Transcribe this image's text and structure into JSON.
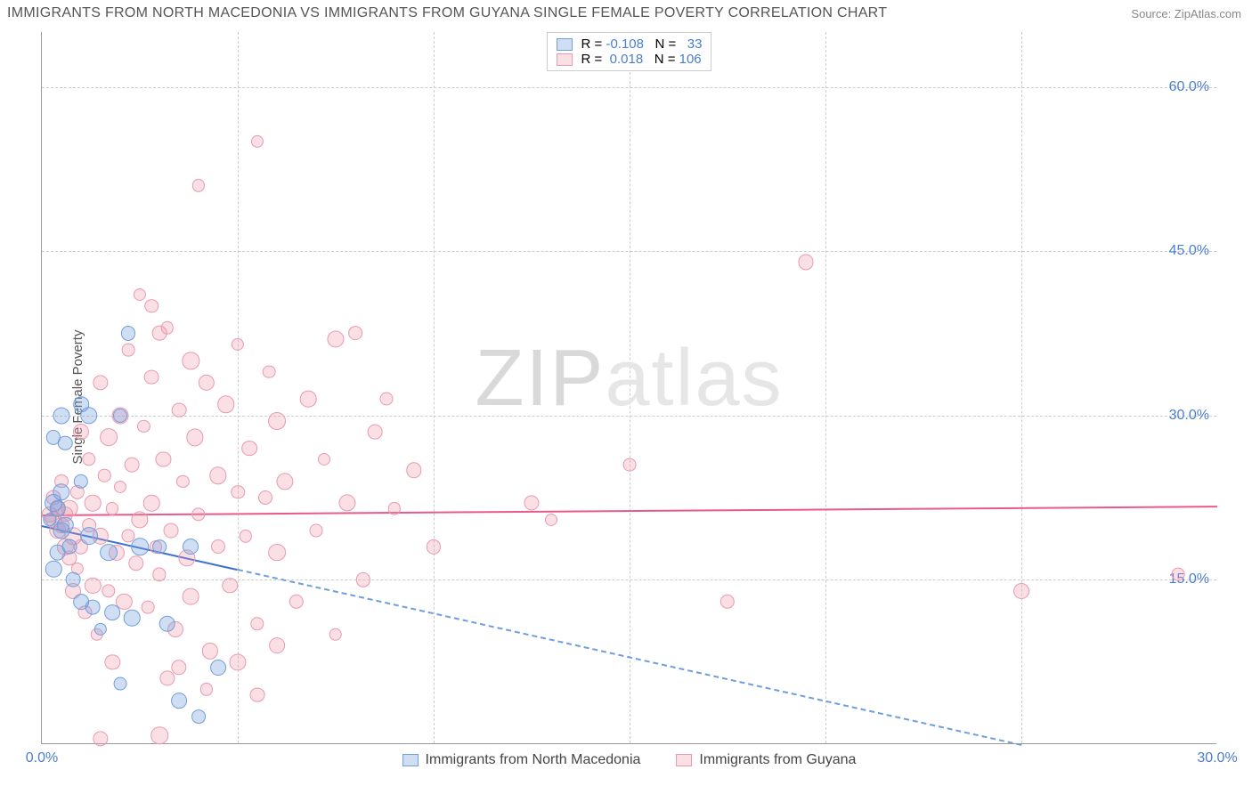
{
  "chart": {
    "type": "scatter",
    "title": "IMMIGRANTS FROM NORTH MACEDONIA VS IMMIGRANTS FROM GUYANA SINGLE FEMALE POVERTY CORRELATION CHART",
    "source_label": "Source:",
    "source_name": "ZipAtlas.com",
    "y_label": "Single Female Poverty",
    "watermark_a": "ZIP",
    "watermark_b": "atlas",
    "watermark_color_a": "#d9d9d9",
    "watermark_color_b": "#e6e6e6",
    "background_color": "#ffffff",
    "grid_color": "#cccccc",
    "axis_color": "#999999",
    "tick_label_color": "#4a7ecf",
    "xlim": [
      0,
      30
    ],
    "ylim": [
      0,
      65
    ],
    "x_ticks": [
      0,
      5,
      10,
      15,
      20,
      25,
      30
    ],
    "x_tick_labels": [
      "0.0%",
      "",
      "",
      "",
      "",
      "",
      "30.0%"
    ],
    "y_ticks": [
      15,
      30,
      45,
      60
    ],
    "y_tick_labels": [
      "15.0%",
      "30.0%",
      "45.0%",
      "60.0%"
    ],
    "series": [
      {
        "name": "Immigrants from North Macedonia",
        "legend_label": "Immigrants from North Macedonia",
        "fill": "rgba(120,160,220,0.35)",
        "stroke": "#6f9edb",
        "line_color": "#3b6fd1",
        "line_dash_color": "#6f9edb",
        "R_label": "R = ",
        "R_value": "-0.108",
        "N_label": "N = ",
        "N_value": "33",
        "trend": {
          "x1": 0,
          "y1": 20.0,
          "x2": 5.0,
          "y2": 16.0
        },
        "trend_ext": {
          "x1": 5.0,
          "y1": 16.0,
          "x2": 25.0,
          "y2": 0.0
        },
        "points": [
          [
            0.2,
            20.5
          ],
          [
            0.3,
            22.0
          ],
          [
            0.4,
            21.5
          ],
          [
            0.5,
            19.5
          ],
          [
            0.5,
            23.0
          ],
          [
            0.6,
            20.0
          ],
          [
            0.3,
            28.0
          ],
          [
            0.5,
            30.0
          ],
          [
            0.6,
            27.5
          ],
          [
            0.4,
            17.5
          ],
          [
            0.3,
            16.0
          ],
          [
            0.7,
            18.0
          ],
          [
            0.8,
            15.0
          ],
          [
            1.0,
            13.0
          ],
          [
            1.0,
            24.0
          ],
          [
            1.0,
            31.0
          ],
          [
            1.2,
            30.0
          ],
          [
            1.2,
            19.0
          ],
          [
            1.3,
            12.5
          ],
          [
            1.5,
            10.5
          ],
          [
            1.7,
            17.5
          ],
          [
            1.8,
            12.0
          ],
          [
            2.0,
            30.0
          ],
          [
            2.2,
            37.5
          ],
          [
            2.3,
            11.5
          ],
          [
            2.5,
            18.0
          ],
          [
            3.0,
            18.0
          ],
          [
            3.2,
            11.0
          ],
          [
            3.5,
            4.0
          ],
          [
            3.8,
            18.0
          ],
          [
            4.0,
            2.5
          ],
          [
            4.5,
            7.0
          ],
          [
            2.0,
            5.5
          ]
        ]
      },
      {
        "name": "Immigrants from Guyana",
        "legend_label": "Immigrants from Guyana",
        "fill": "rgba(240,150,170,0.30)",
        "stroke": "#e89ab0",
        "line_color": "#e85a8c",
        "R_label": "R = ",
        "R_value": "0.018",
        "N_label": "N = ",
        "N_value": "106",
        "trend": {
          "x1": 0,
          "y1": 21.0,
          "x2": 30,
          "y2": 21.8
        },
        "points": [
          [
            0.2,
            21.0
          ],
          [
            0.3,
            20.5
          ],
          [
            0.3,
            22.5
          ],
          [
            0.4,
            19.5
          ],
          [
            0.4,
            21.5
          ],
          [
            0.5,
            20.0
          ],
          [
            0.5,
            24.0
          ],
          [
            0.6,
            18.0
          ],
          [
            0.6,
            21.0
          ],
          [
            0.7,
            21.5
          ],
          [
            0.7,
            17.0
          ],
          [
            0.8,
            19.0
          ],
          [
            0.8,
            14.0
          ],
          [
            0.9,
            23.0
          ],
          [
            0.9,
            16.0
          ],
          [
            1.0,
            28.5
          ],
          [
            1.0,
            18.0
          ],
          [
            1.1,
            12.0
          ],
          [
            1.2,
            20.0
          ],
          [
            1.2,
            26.0
          ],
          [
            1.3,
            14.5
          ],
          [
            1.3,
            22.0
          ],
          [
            1.4,
            10.0
          ],
          [
            1.5,
            19.0
          ],
          [
            1.5,
            33.0
          ],
          [
            1.6,
            24.5
          ],
          [
            1.7,
            28.0
          ],
          [
            1.7,
            14.0
          ],
          [
            1.8,
            21.5
          ],
          [
            1.8,
            7.5
          ],
          [
            1.9,
            17.5
          ],
          [
            2.0,
            30.0
          ],
          [
            2.0,
            23.5
          ],
          [
            2.1,
            13.0
          ],
          [
            2.2,
            36.0
          ],
          [
            2.2,
            19.0
          ],
          [
            2.3,
            25.5
          ],
          [
            2.4,
            16.5
          ],
          [
            2.5,
            41.0
          ],
          [
            2.5,
            20.5
          ],
          [
            2.6,
            29.0
          ],
          [
            2.7,
            12.5
          ],
          [
            2.8,
            33.5
          ],
          [
            2.8,
            22.0
          ],
          [
            2.9,
            18.0
          ],
          [
            3.0,
            37.5
          ],
          [
            3.0,
            15.5
          ],
          [
            3.1,
            26.0
          ],
          [
            3.2,
            38.0
          ],
          [
            3.3,
            19.5
          ],
          [
            3.4,
            10.5
          ],
          [
            3.5,
            30.5
          ],
          [
            3.5,
            7.0
          ],
          [
            3.6,
            24.0
          ],
          [
            3.7,
            17.0
          ],
          [
            3.8,
            35.0
          ],
          [
            3.8,
            13.5
          ],
          [
            3.9,
            28.0
          ],
          [
            4.0,
            21.0
          ],
          [
            4.0,
            51.0
          ],
          [
            4.2,
            33.0
          ],
          [
            4.3,
            8.5
          ],
          [
            4.5,
            24.5
          ],
          [
            4.5,
            18.0
          ],
          [
            4.7,
            31.0
          ],
          [
            4.8,
            14.5
          ],
          [
            5.0,
            23.0
          ],
          [
            5.0,
            36.5
          ],
          [
            5.2,
            19.0
          ],
          [
            5.3,
            27.0
          ],
          [
            5.5,
            55.0
          ],
          [
            5.5,
            11.0
          ],
          [
            5.7,
            22.5
          ],
          [
            5.8,
            34.0
          ],
          [
            6.0,
            17.5
          ],
          [
            6.0,
            29.5
          ],
          [
            6.2,
            24.0
          ],
          [
            6.5,
            13.0
          ],
          [
            6.8,
            31.5
          ],
          [
            7.0,
            19.5
          ],
          [
            7.2,
            26.0
          ],
          [
            7.5,
            37.0
          ],
          [
            7.5,
            10.0
          ],
          [
            7.8,
            22.0
          ],
          [
            8.0,
            37.5
          ],
          [
            8.2,
            15.0
          ],
          [
            8.5,
            28.5
          ],
          [
            8.8,
            31.5
          ],
          [
            9.0,
            21.5
          ],
          [
            9.5,
            25.0
          ],
          [
            10.0,
            18.0
          ],
          [
            12.5,
            22.0
          ],
          [
            13.0,
            20.5
          ],
          [
            15.0,
            25.5
          ],
          [
            17.5,
            13.0
          ],
          [
            19.5,
            44.0
          ],
          [
            25.0,
            14.0
          ],
          [
            29.0,
            15.5
          ],
          [
            3.2,
            6.0
          ],
          [
            4.2,
            5.0
          ],
          [
            5.0,
            7.5
          ],
          [
            5.5,
            4.5
          ],
          [
            6.0,
            9.0
          ],
          [
            2.8,
            40.0
          ],
          [
            1.5,
            0.5
          ],
          [
            3.0,
            0.8
          ]
        ]
      }
    ]
  }
}
